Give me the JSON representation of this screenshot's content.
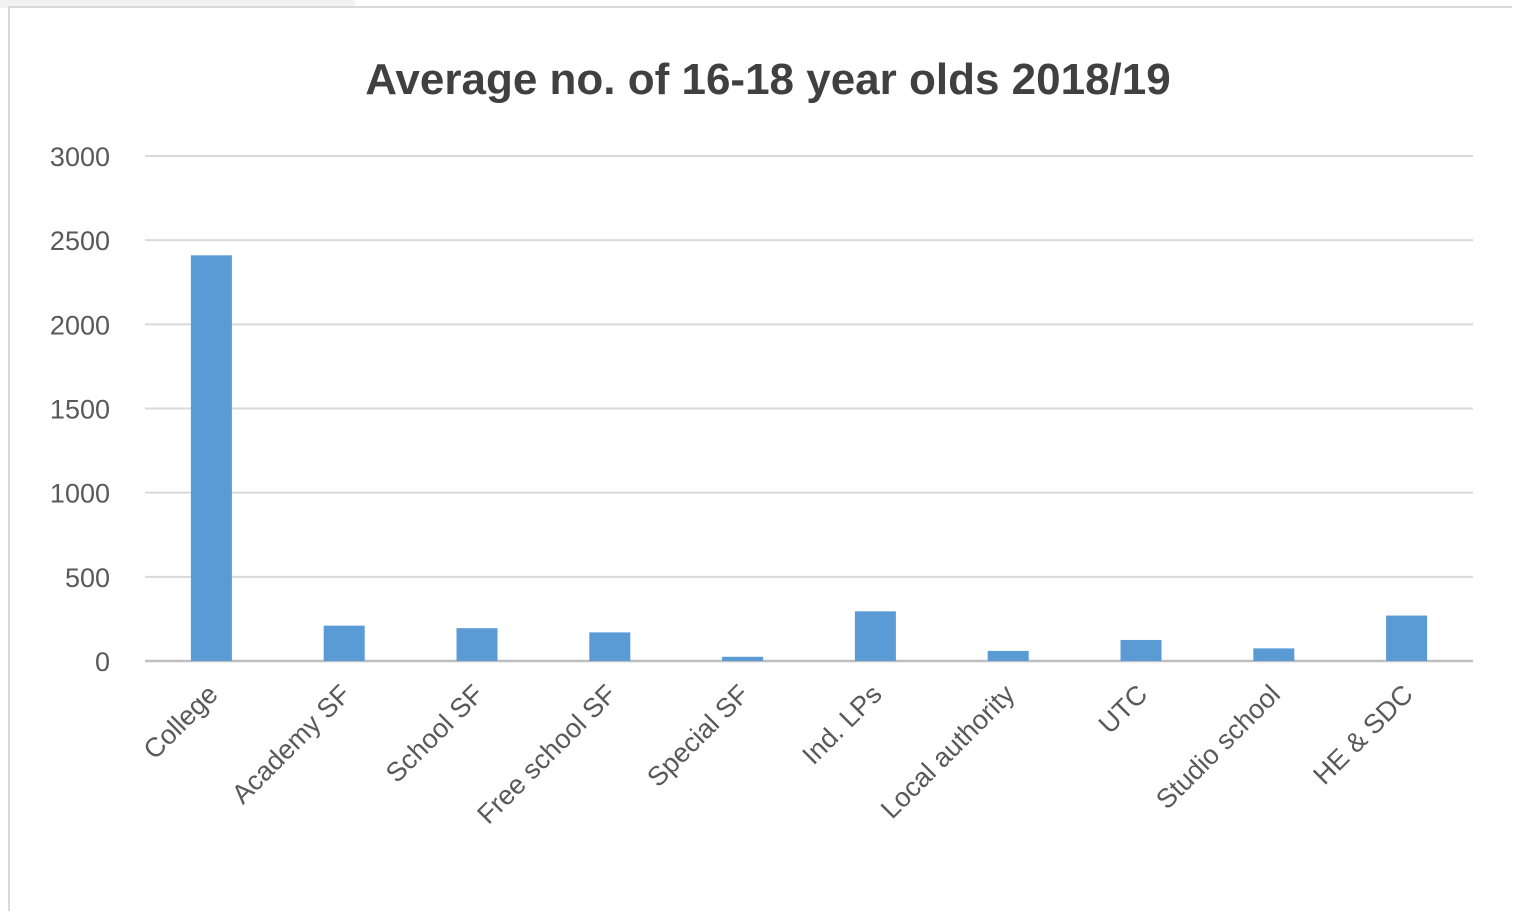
{
  "chart_data": {
    "type": "bar",
    "title": "Average no. of 16-18 year olds 2018/19",
    "xlabel": "",
    "ylabel": "",
    "categories": [
      "College",
      "Academy SF",
      "School SF",
      "Free school SF",
      "Special SF",
      "Ind. LPs",
      "Local authority",
      "UTC",
      "Studio school",
      "HE & SDC"
    ],
    "values": [
      2410,
      210,
      195,
      170,
      25,
      295,
      60,
      125,
      75,
      270
    ],
    "ylim": [
      0,
      3000
    ],
    "yticks": [
      "0",
      "500",
      "1000",
      "1500",
      "2000",
      "2500",
      "3000"
    ],
    "grid": true,
    "legend": "none",
    "colors": {
      "bar": "#5b9bd5",
      "grid": "#d9d9d9",
      "axis": "#bfbfbf",
      "text": "#595959",
      "title": "#404040"
    }
  }
}
